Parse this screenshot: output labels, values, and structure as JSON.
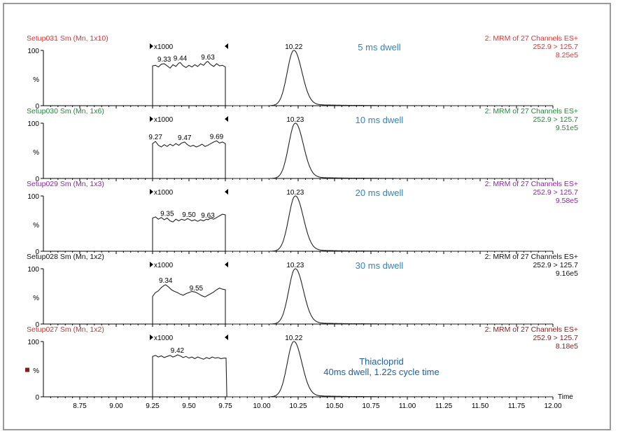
{
  "chart_data": {
    "type": "line",
    "x_axis_title": "Time",
    "xlim": [
      8.5,
      12.0
    ],
    "x_ticks": [
      "8.75",
      "9.00",
      "9.25",
      "9.50",
      "9.75",
      "10.00",
      "10.25",
      "10.50",
      "10.75",
      "11.00",
      "11.25",
      "11.50",
      "11.75",
      "12.00"
    ],
    "y_ticks": [
      "100",
      "%",
      "0"
    ],
    "ylim": [
      0,
      100
    ],
    "zoom_window": [
      9.25,
      9.75
    ],
    "grid": false,
    "legend": "none",
    "panels": [
      {
        "setup": "Setup031 Sm (Mn, 1x10)",
        "setup_color": "#e8312e",
        "channel": "2: MRM of 27 Channels ES+",
        "transition": "252.9 > 125.7",
        "intensity": "8.25e5",
        "info_color": "#e8312e",
        "zoom": "x1000",
        "dwell": "5 ms dwell",
        "dwell_color": "#2e86c1",
        "peak_time": 10.22,
        "peak_label": "10.22",
        "labels": [
          {
            "x": 9.33,
            "text": "9.33"
          },
          {
            "x": 9.44,
            "text": "9.44"
          },
          {
            "x": 9.63,
            "text": "9.63"
          }
        ],
        "zoom_trace": [
          [
            9.25,
            0
          ],
          [
            9.25,
            72
          ],
          [
            9.27,
            73
          ],
          [
            9.29,
            70
          ],
          [
            9.31,
            75
          ],
          [
            9.33,
            76
          ],
          [
            9.35,
            72
          ],
          [
            9.37,
            68
          ],
          [
            9.39,
            74
          ],
          [
            9.41,
            71
          ],
          [
            9.43,
            77
          ],
          [
            9.44,
            78
          ],
          [
            9.46,
            72
          ],
          [
            9.48,
            69
          ],
          [
            9.5,
            73
          ],
          [
            9.52,
            70
          ],
          [
            9.54,
            74
          ],
          [
            9.56,
            71
          ],
          [
            9.58,
            76
          ],
          [
            9.6,
            73
          ],
          [
            9.62,
            79
          ],
          [
            9.63,
            80
          ],
          [
            9.65,
            74
          ],
          [
            9.67,
            71
          ],
          [
            9.69,
            76
          ],
          [
            9.71,
            72
          ],
          [
            9.73,
            73
          ],
          [
            9.75,
            70
          ],
          [
            9.75,
            0
          ]
        ]
      },
      {
        "setup": "Setup030 Sm (Mn, 1x6)",
        "setup_color": "#1e8a3c",
        "channel": "2: MRM of 27 Channels ES+",
        "transition": "252.9 > 125.7",
        "intensity": "9.51e5",
        "info_color": "#1e8a3c",
        "zoom": "x1000",
        "dwell": "10 ms dwell",
        "dwell_color": "#2e86c1",
        "peak_time": 10.23,
        "peak_label": "10.23",
        "labels": [
          {
            "x": 9.27,
            "text": "9.27"
          },
          {
            "x": 9.47,
            "text": "9.47"
          },
          {
            "x": 9.69,
            "text": "9.69"
          }
        ],
        "zoom_trace": [
          [
            9.25,
            0
          ],
          [
            9.25,
            63
          ],
          [
            9.27,
            67
          ],
          [
            9.29,
            60
          ],
          [
            9.31,
            57
          ],
          [
            9.33,
            61
          ],
          [
            9.35,
            58
          ],
          [
            9.37,
            62
          ],
          [
            9.39,
            59
          ],
          [
            9.41,
            63
          ],
          [
            9.43,
            60
          ],
          [
            9.45,
            64
          ],
          [
            9.47,
            66
          ],
          [
            9.49,
            61
          ],
          [
            9.51,
            58
          ],
          [
            9.53,
            60
          ],
          [
            9.55,
            57
          ],
          [
            9.57,
            59
          ],
          [
            9.59,
            62
          ],
          [
            9.61,
            58
          ],
          [
            9.63,
            60
          ],
          [
            9.65,
            63
          ],
          [
            9.67,
            66
          ],
          [
            9.69,
            68
          ],
          [
            9.71,
            64
          ],
          [
            9.73,
            66
          ],
          [
            9.75,
            63
          ],
          [
            9.75,
            0
          ]
        ]
      },
      {
        "setup": "Setup029 Sm (Mn, 1x3)",
        "setup_color": "#8e24aa",
        "channel": "2: MRM of 27 Channels ES+",
        "transition": "252.9 > 125.7",
        "intensity": "9.58e5",
        "info_color": "#8e24aa",
        "zoom": "x1000",
        "dwell": "20 ms dwell",
        "dwell_color": "#2e86c1",
        "peak_time": 10.23,
        "peak_label": "10.23",
        "labels": [
          {
            "x": 9.35,
            "text": "9.35"
          },
          {
            "x": 9.5,
            "text": "9.50"
          },
          {
            "x": 9.63,
            "text": "9.63"
          }
        ],
        "zoom_trace": [
          [
            9.25,
            0
          ],
          [
            9.25,
            60
          ],
          [
            9.27,
            62
          ],
          [
            9.29,
            58
          ],
          [
            9.31,
            61
          ],
          [
            9.33,
            57
          ],
          [
            9.35,
            60
          ],
          [
            9.37,
            55
          ],
          [
            9.39,
            53
          ],
          [
            9.41,
            58
          ],
          [
            9.43,
            55
          ],
          [
            9.45,
            58
          ],
          [
            9.47,
            56
          ],
          [
            9.49,
            59
          ],
          [
            9.5,
            58
          ],
          [
            9.52,
            55
          ],
          [
            9.54,
            57
          ],
          [
            9.56,
            54
          ],
          [
            9.58,
            57
          ],
          [
            9.6,
            55
          ],
          [
            9.62,
            58
          ],
          [
            9.63,
            57
          ],
          [
            9.65,
            60
          ],
          [
            9.67,
            58
          ],
          [
            9.69,
            61
          ],
          [
            9.71,
            64
          ],
          [
            9.73,
            67
          ],
          [
            9.75,
            66
          ],
          [
            9.75,
            0
          ]
        ]
      },
      {
        "setup": "Setup028 Sm (Mn, 1x2)",
        "setup_color": "#111111",
        "channel": "2: MRM of 27 Channels ES+",
        "transition": "252.9 > 125.7",
        "intensity": "9.16e5",
        "info_color": "#111111",
        "zoom": "x1000",
        "dwell": "30 ms dwell",
        "dwell_color": "#2e86c1",
        "peak_time": 10.23,
        "peak_label": "10.23",
        "labels": [
          {
            "x": 9.34,
            "text": "9.34"
          },
          {
            "x": 9.55,
            "text": "9.55"
          }
        ],
        "zoom_trace": [
          [
            9.25,
            0
          ],
          [
            9.25,
            50
          ],
          [
            9.27,
            57
          ],
          [
            9.29,
            60
          ],
          [
            9.31,
            66
          ],
          [
            9.33,
            70
          ],
          [
            9.34,
            71
          ],
          [
            9.36,
            67
          ],
          [
            9.38,
            62
          ],
          [
            9.4,
            59
          ],
          [
            9.42,
            57
          ],
          [
            9.44,
            54
          ],
          [
            9.46,
            52
          ],
          [
            9.48,
            55
          ],
          [
            9.5,
            57
          ],
          [
            9.52,
            59
          ],
          [
            9.54,
            58
          ],
          [
            9.55,
            57
          ],
          [
            9.57,
            54
          ],
          [
            9.59,
            51
          ],
          [
            9.61,
            49
          ],
          [
            9.63,
            52
          ],
          [
            9.65,
            55
          ],
          [
            9.67,
            58
          ],
          [
            9.69,
            62
          ],
          [
            9.71,
            65
          ],
          [
            9.73,
            63
          ],
          [
            9.75,
            62
          ],
          [
            9.75,
            0
          ]
        ]
      },
      {
        "setup": "Setup027 Sm (Mn, 1x2)",
        "setup_color": "#c0392b",
        "channel": "2: MRM of 27 Channels ES+",
        "transition": "252.9 > 125.7",
        "intensity": "8.18e5",
        "info_color": "#8b1a1a",
        "zoom": "x1000",
        "dwell": "Thiacloprid",
        "dwell2": "40ms dwell, 1.22s cycle time",
        "dwell_color": "#1f5fa8",
        "peak_time": 10.22,
        "peak_label": "10.22",
        "labels": [
          {
            "x": 9.42,
            "text": "9.42"
          }
        ],
        "zoom_trace": [
          [
            9.25,
            0
          ],
          [
            9.25,
            73
          ],
          [
            9.27,
            75
          ],
          [
            9.29,
            72
          ],
          [
            9.31,
            74
          ],
          [
            9.33,
            71
          ],
          [
            9.35,
            73
          ],
          [
            9.37,
            75
          ],
          [
            9.39,
            72
          ],
          [
            9.41,
            74
          ],
          [
            9.42,
            76
          ],
          [
            9.44,
            74
          ],
          [
            9.46,
            71
          ],
          [
            9.48,
            73
          ],
          [
            9.5,
            70
          ],
          [
            9.52,
            72
          ],
          [
            9.54,
            69
          ],
          [
            9.56,
            72
          ],
          [
            9.58,
            70
          ],
          [
            9.6,
            68
          ],
          [
            9.62,
            71
          ],
          [
            9.64,
            69
          ],
          [
            9.66,
            72
          ],
          [
            9.68,
            70
          ],
          [
            9.7,
            71
          ],
          [
            9.72,
            69
          ],
          [
            9.74,
            70
          ],
          [
            9.755,
            70
          ],
          [
            9.76,
            0
          ]
        ]
      }
    ]
  }
}
